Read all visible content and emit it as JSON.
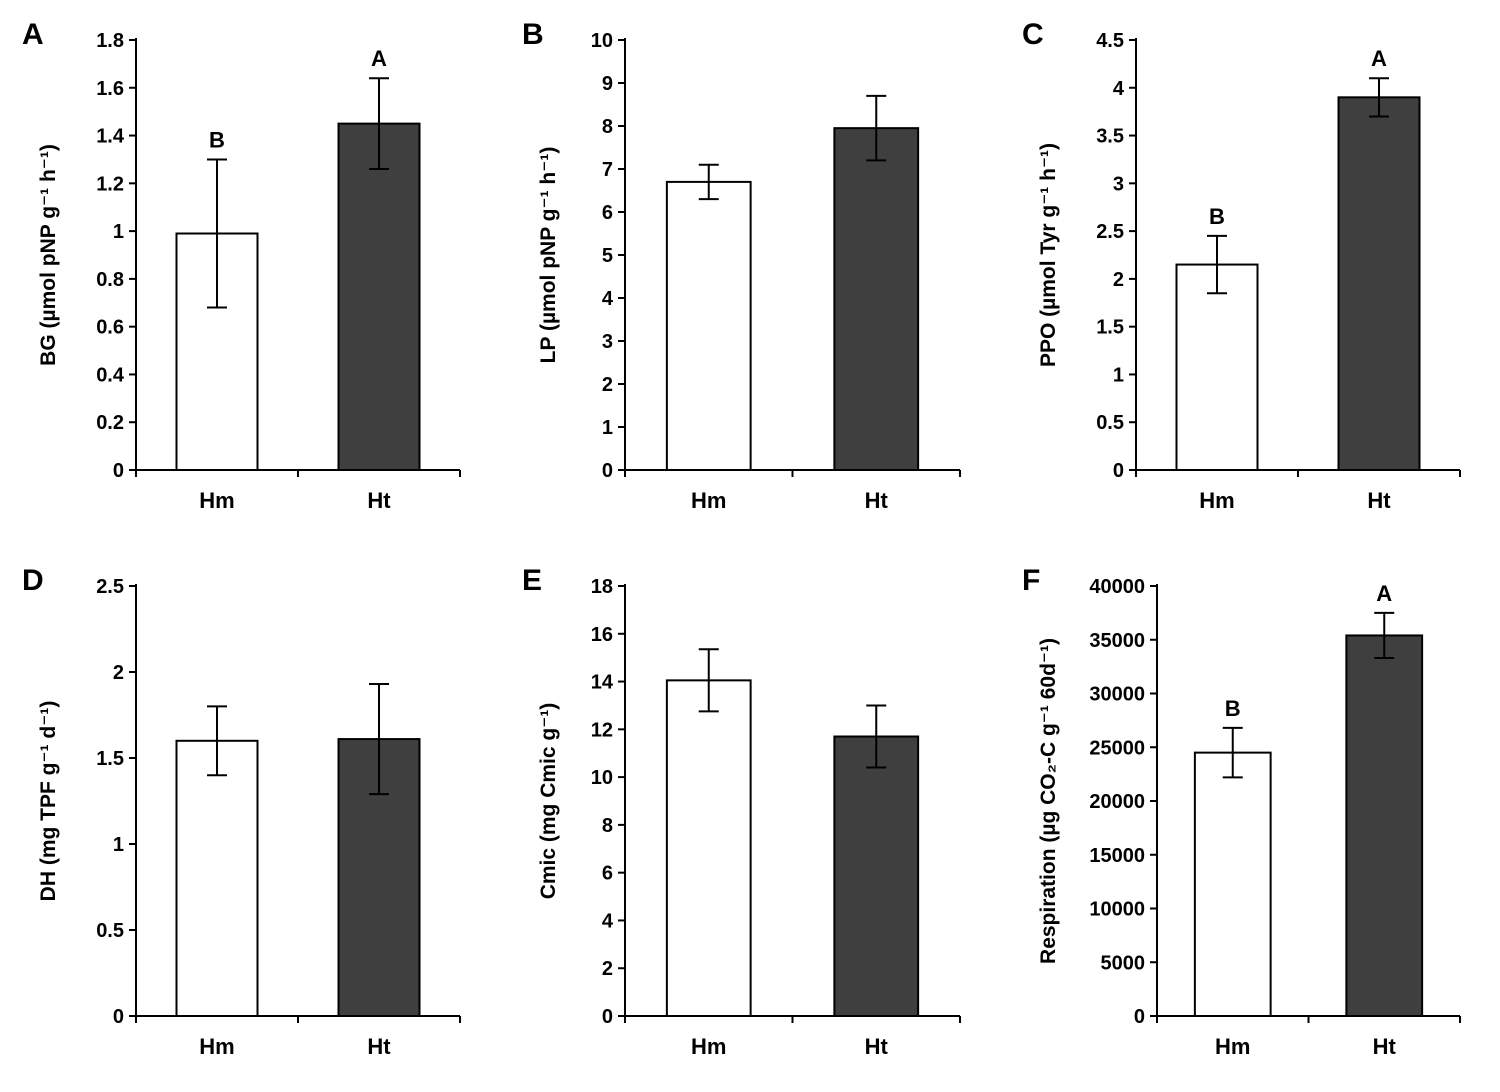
{
  "figure": {
    "background": "#ffffff",
    "axis_color": "#000000",
    "error_bar_color": "#000000",
    "bar_border_color": "#000000",
    "bar_fill_hm": "#ffffff",
    "bar_fill_ht": "#3f3f3f"
  },
  "chart_data": [
    {
      "type": "bar",
      "panel": "A",
      "title": "",
      "xlabel": "",
      "ylabel": "BG (µmol pNP g⁻¹ h⁻¹)",
      "categories": [
        "Hm",
        "Ht"
      ],
      "values": [
        0.99,
        1.45
      ],
      "errors": [
        0.31,
        0.19
      ],
      "letters": [
        "B",
        "A"
      ],
      "ylim": [
        0,
        1.8
      ],
      "yticks": [
        0,
        0.2,
        0.4,
        0.6,
        0.8,
        1,
        1.2,
        1.4,
        1.6,
        1.8
      ],
      "ytick_labels": [
        "0",
        "0.2",
        "0.4",
        "0.6",
        "0.8",
        "1",
        "1.2",
        "1.4",
        "1.6",
        "1.8"
      ],
      "bar_colors": [
        "#ffffff",
        "#3f3f3f"
      ],
      "grid": false,
      "legend": "none"
    },
    {
      "type": "bar",
      "panel": "B",
      "title": "",
      "xlabel": "",
      "ylabel": "LP (µmol pNP g⁻¹ h⁻¹)",
      "categories": [
        "Hm",
        "Ht"
      ],
      "values": [
        6.7,
        7.95
      ],
      "errors": [
        0.4,
        0.75
      ],
      "letters": [
        "",
        ""
      ],
      "ylim": [
        0,
        10
      ],
      "yticks": [
        0,
        1,
        2,
        3,
        4,
        5,
        6,
        7,
        8,
        9,
        10
      ],
      "ytick_labels": [
        "0",
        "1",
        "2",
        "3",
        "4",
        "5",
        "6",
        "7",
        "8",
        "9",
        "10"
      ],
      "bar_colors": [
        "#ffffff",
        "#3f3f3f"
      ],
      "grid": false,
      "legend": "none"
    },
    {
      "type": "bar",
      "panel": "C",
      "title": "",
      "xlabel": "",
      "ylabel": "PPO (µmol Tyr g⁻¹ h⁻¹)",
      "categories": [
        "Hm",
        "Ht"
      ],
      "values": [
        2.15,
        3.9
      ],
      "errors": [
        0.3,
        0.2
      ],
      "letters": [
        "B",
        "A"
      ],
      "ylim": [
        0,
        4.5
      ],
      "yticks": [
        0,
        0.5,
        1,
        1.5,
        2,
        2.5,
        3,
        3.5,
        4,
        4.5
      ],
      "ytick_labels": [
        "0",
        "0.5",
        "1",
        "1.5",
        "2",
        "2.5",
        "3",
        "3.5",
        "4",
        "4.5"
      ],
      "bar_colors": [
        "#ffffff",
        "#3f3f3f"
      ],
      "grid": false,
      "legend": "none"
    },
    {
      "type": "bar",
      "panel": "D",
      "title": "",
      "xlabel": "",
      "ylabel": "DH (mg TPF g⁻¹ d⁻¹)",
      "categories": [
        "Hm",
        "Ht"
      ],
      "values": [
        1.6,
        1.61
      ],
      "errors": [
        0.2,
        0.32
      ],
      "letters": [
        "",
        ""
      ],
      "ylim": [
        0,
        2.5
      ],
      "yticks": [
        0,
        0.5,
        1,
        1.5,
        2,
        2.5
      ],
      "ytick_labels": [
        "0",
        "0.5",
        "1",
        "1.5",
        "2",
        "2.5"
      ],
      "bar_colors": [
        "#ffffff",
        "#3f3f3f"
      ],
      "grid": false,
      "legend": "none"
    },
    {
      "type": "bar",
      "panel": "E",
      "title": "",
      "xlabel": "",
      "ylabel": "Cmic (mg Cmic g⁻¹)",
      "categories": [
        "Hm",
        "Ht"
      ],
      "values": [
        14.05,
        11.7
      ],
      "errors": [
        1.3,
        1.3
      ],
      "letters": [
        "",
        ""
      ],
      "ylim": [
        0,
        18
      ],
      "yticks": [
        0,
        2,
        4,
        6,
        8,
        10,
        12,
        14,
        16,
        18
      ],
      "ytick_labels": [
        "0",
        "2",
        "4",
        "6",
        "8",
        "10",
        "12",
        "14",
        "16",
        "18"
      ],
      "bar_colors": [
        "#ffffff",
        "#3f3f3f"
      ],
      "grid": false,
      "legend": "none"
    },
    {
      "type": "bar",
      "panel": "F",
      "title": "",
      "xlabel": "",
      "ylabel": "Respiration (µg CO₂-C g⁻¹ 60d⁻¹)",
      "categories": [
        "Hm",
        "Ht"
      ],
      "values": [
        24500,
        35400
      ],
      "errors": [
        2300,
        2100
      ],
      "letters": [
        "B",
        "A"
      ],
      "ylim": [
        0,
        40000
      ],
      "yticks": [
        0,
        5000,
        10000,
        15000,
        20000,
        25000,
        30000,
        35000,
        40000
      ],
      "ytick_labels": [
        "0",
        "5000",
        "10000",
        "15000",
        "20000",
        "25000",
        "30000",
        "35000",
        "40000"
      ],
      "bar_colors": [
        "#ffffff",
        "#3f3f3f"
      ],
      "grid": false,
      "legend": "none"
    }
  ]
}
